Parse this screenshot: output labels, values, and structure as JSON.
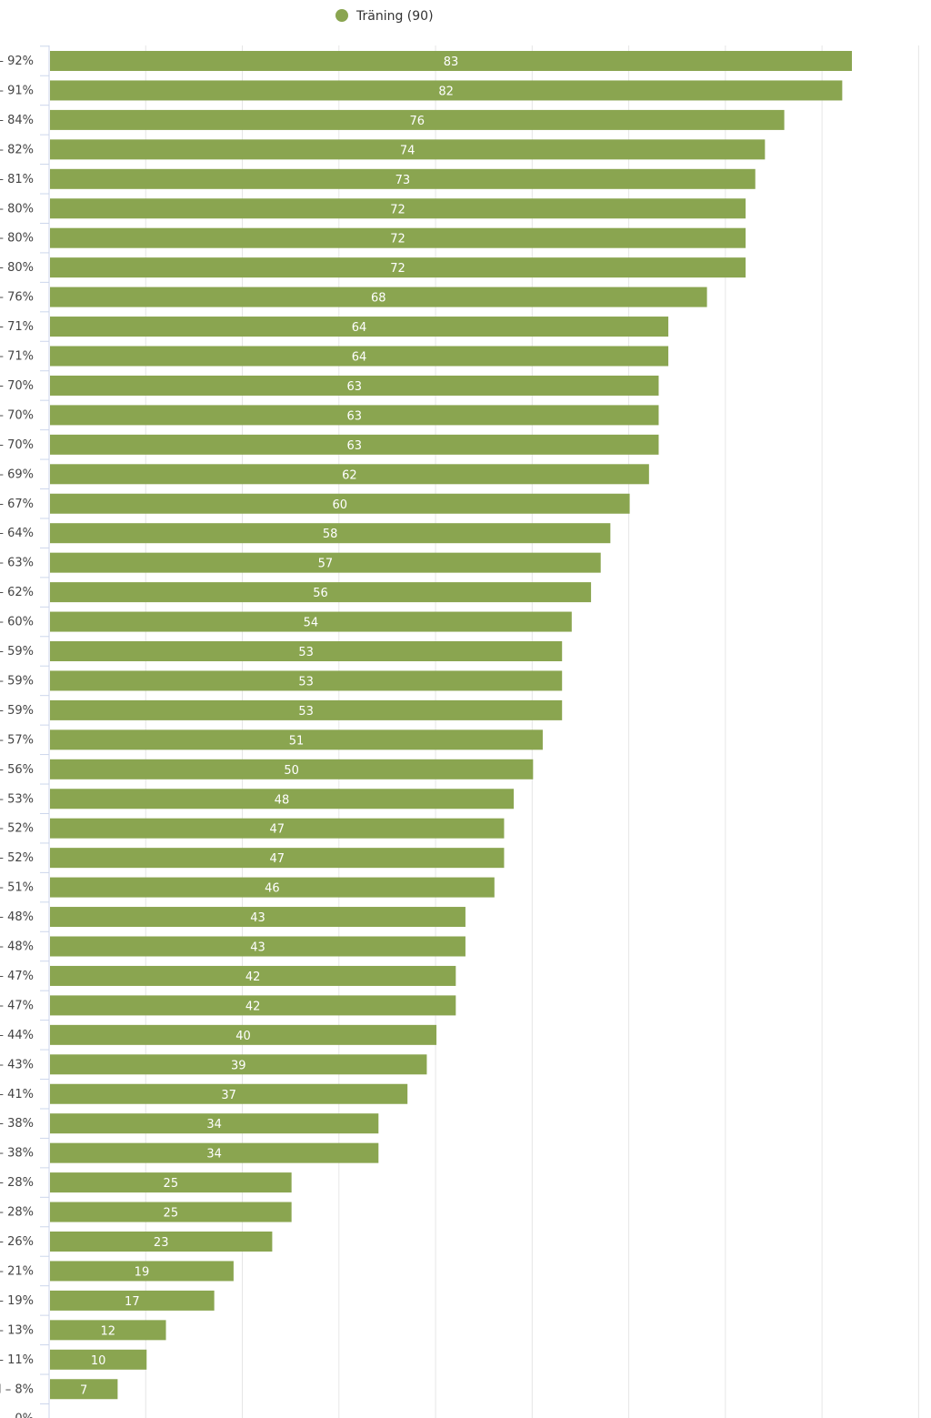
{
  "chart_data": {
    "type": "bar",
    "orientation": "horizontal",
    "title": "",
    "xlabel": "",
    "ylabel": "",
    "legend": {
      "position": "top-center"
    },
    "grid": true,
    "xlim": [
      0,
      90
    ],
    "bar_color": "#8aa550",
    "categories": [
      "– 92%",
      "– 91%",
      "– 84%",
      "– 82%",
      "– 81%",
      "– 80%",
      "– 80%",
      "– 80%",
      "– 76%",
      "– 71%",
      "– 71%",
      "– 70%",
      "– 70%",
      "– 70%",
      "– 69%",
      "– 67%",
      "– 64%",
      "– 63%",
      "– 62%",
      "– 60%",
      "– 59%",
      "– 59%",
      "– 59%",
      "– 57%",
      "– 56%",
      "– 53%",
      "– 52%",
      "– 52%",
      "– 51%",
      "– 48%",
      "– 48%",
      "– 47%",
      "– 47%",
      "– 44%",
      "– 43%",
      "– 41%",
      "– 38%",
      "– 38%",
      "– 28%",
      "– 28%",
      "– 26%",
      "– 21%",
      "– 19%",
      "– 13%",
      "– 11%",
      "l – 8%",
      "– 0%"
    ],
    "series": [
      {
        "name": "Träning (90)",
        "values": [
          83,
          82,
          76,
          74,
          73,
          72,
          72,
          72,
          68,
          64,
          64,
          63,
          63,
          63,
          62,
          60,
          58,
          57,
          56,
          54,
          53,
          53,
          53,
          51,
          50,
          48,
          47,
          47,
          46,
          43,
          43,
          42,
          42,
          40,
          39,
          37,
          34,
          34,
          25,
          25,
          23,
          19,
          17,
          12,
          10,
          7,
          null
        ]
      }
    ]
  }
}
